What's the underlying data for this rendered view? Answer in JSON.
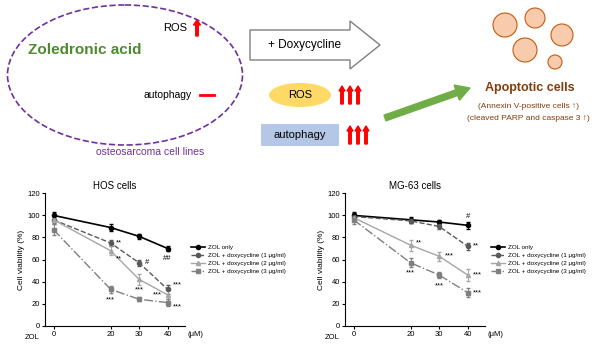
{
  "diagram": {
    "left_box": {
      "drug": "Zoledronic acid",
      "ros": "ROS",
      "autophagy": "autophagy",
      "label": "osteosarcoma cell lines"
    },
    "treatment": "+ Doxycycline",
    "effects": [
      "ROS",
      "autophagy"
    ],
    "outcome": {
      "title": "Apoptotic cells",
      "notes": [
        "(Annexin V-positive cells ↑)",
        "(cleaved PARP and caspase 3 ↑)"
      ]
    }
  },
  "chart_data": [
    {
      "type": "line",
      "title": "HOS cells",
      "ylabel": "Cell viability (%)",
      "x_name": "ZOL",
      "xlabel": "(μM)",
      "x": [
        0,
        20,
        30,
        40
      ],
      "xlim": [
        -3,
        46
      ],
      "xticks": [
        0,
        20,
        30,
        40
      ],
      "ylim": [
        0,
        120
      ],
      "yticks": [
        0,
        20,
        40,
        60,
        80,
        100,
        120
      ],
      "legend": "right",
      "series": [
        {
          "name": "ZOL only",
          "color": "#000000",
          "marker": "circle",
          "line_style": "solid",
          "values": [
            100,
            89,
            81,
            70
          ],
          "errors": [
            3,
            3,
            2,
            2
          ],
          "marks": [
            null,
            null,
            null,
            "##"
          ]
        },
        {
          "name": "ZOL + doxycycline (1 μg/ml)",
          "color": "#595959",
          "marker": "circle",
          "line_style": "dashed",
          "values": [
            96,
            75,
            57,
            33
          ],
          "errors": [
            3,
            3,
            3,
            4
          ],
          "marks": [
            null,
            "**",
            "#",
            "***"
          ]
        },
        {
          "name": "ZOL + doxycycline (2 μg/ml)",
          "color": "#a6a6a6",
          "marker": "triangle",
          "line_style": "solid",
          "values": [
            96,
            68,
            42,
            28
          ],
          "errors": [
            4,
            4,
            5,
            4
          ],
          "marks": [
            null,
            "**",
            "***",
            "***"
          ]
        },
        {
          "name": "ZOL + doxycycline (3 μg/ml)",
          "color": "#7f7f7f",
          "marker": "square",
          "line_style": "dashdot",
          "values": [
            87,
            33,
            24,
            21
          ],
          "errors": [
            5,
            3,
            2,
            3
          ],
          "marks": [
            null,
            "***",
            null,
            "***"
          ]
        }
      ]
    },
    {
      "type": "line",
      "title": "MG-63 cells",
      "ylabel": "Cell viability (%)",
      "x_name": "ZOL",
      "xlabel": "(μM)",
      "x": [
        0,
        20,
        30,
        40
      ],
      "xlim": [
        -3,
        46
      ],
      "xticks": [
        0,
        20,
        30,
        40
      ],
      "ylim": [
        0,
        120
      ],
      "yticks": [
        0,
        20,
        40,
        60,
        80,
        100,
        120
      ],
      "legend": "right",
      "series": [
        {
          "name": "ZOL only",
          "color": "#000000",
          "marker": "circle",
          "line_style": "solid",
          "values": [
            100,
            96,
            94,
            91
          ],
          "errors": [
            3,
            3,
            2,
            3
          ],
          "marks": [
            null,
            null,
            null,
            "#"
          ]
        },
        {
          "name": "ZOL + doxycycline (1 μg/ml)",
          "color": "#595959",
          "marker": "circle",
          "line_style": "dashed",
          "values": [
            99,
            95,
            90,
            72
          ],
          "errors": [
            3,
            2,
            2,
            3
          ],
          "marks": [
            null,
            null,
            null,
            "**"
          ]
        },
        {
          "name": "ZOL + doxycycline (2 μg/ml)",
          "color": "#a6a6a6",
          "marker": "triangle",
          "line_style": "solid",
          "values": [
            98,
            73,
            63,
            46
          ],
          "errors": [
            3,
            5,
            4,
            5
          ],
          "marks": [
            null,
            "**",
            "***",
            "***"
          ]
        },
        {
          "name": "ZOL + doxycycline (3 μg/ml)",
          "color": "#7f7f7f",
          "marker": "square",
          "line_style": "dashdot",
          "values": [
            96,
            57,
            46,
            30
          ],
          "errors": [
            4,
            4,
            3,
            4
          ],
          "marks": [
            null,
            "***",
            "***",
            "***"
          ]
        }
      ]
    }
  ]
}
